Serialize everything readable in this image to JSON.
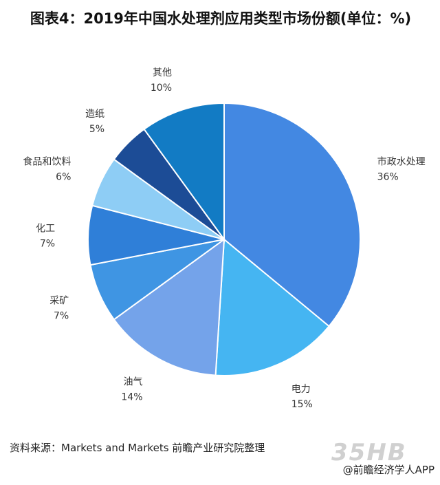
{
  "chart_data": {
    "type": "pie",
    "title": "图表4：2019年中国水处理剂应用类型市场份额(单位：%)",
    "slices": [
      {
        "label": "市政水处理",
        "value": 36,
        "value_text": "36%",
        "color": "#4388e2"
      },
      {
        "label": "电力",
        "value": 15,
        "value_text": "15%",
        "color": "#45b5f2"
      },
      {
        "label": "油气",
        "value": 14,
        "value_text": "14%",
        "color": "#74a3ea"
      },
      {
        "label": "采矿",
        "value": 7,
        "value_text": "7%",
        "color": "#3f95e3"
      },
      {
        "label": "化工",
        "value": 7,
        "value_text": "7%",
        "color": "#2f7fd8"
      },
      {
        "label": "食品和饮料",
        "value": 6,
        "value_text": "6%",
        "color": "#8ecdf5"
      },
      {
        "label": "造纸",
        "value": 5,
        "value_text": "5%",
        "color": "#1c4c96"
      },
      {
        "label": "其他",
        "value": 10,
        "value_text": "10%",
        "color": "#127bc4"
      }
    ]
  },
  "footer": {
    "source": "资料来源：Markets and Markets 前瞻产业研究院整理",
    "brand": "@前瞻经济学人APP",
    "watermark": "35HB"
  }
}
